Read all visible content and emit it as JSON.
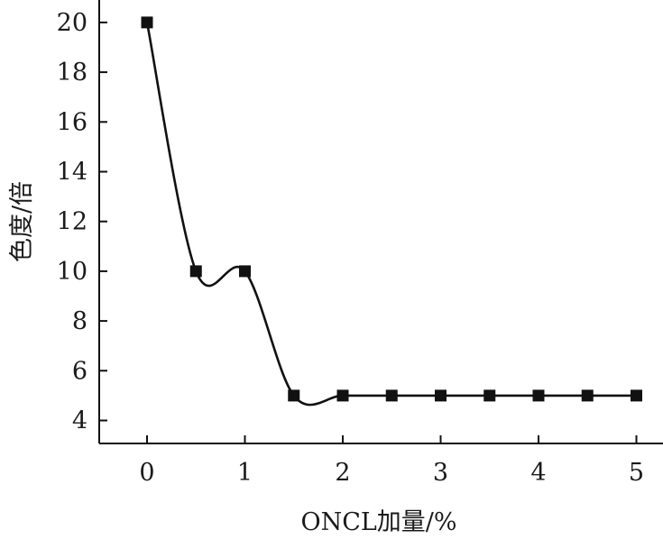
{
  "chart_data": {
    "type": "line",
    "title": "",
    "xlabel": "ONCL加量/%",
    "ylabel": "色度/倍",
    "xlim": [
      -0.5,
      5.3
    ],
    "ylim": [
      3.1,
      21
    ],
    "x_ticks": [
      0,
      1,
      2,
      3,
      4,
      5
    ],
    "y_ticks": [
      4,
      6,
      8,
      10,
      12,
      14,
      16,
      18,
      20
    ],
    "grid": false,
    "legend": "none",
    "series": [
      {
        "color": "#111111",
        "marker": "square",
        "smooth": true,
        "points": [
          {
            "x": 0,
            "y": 20
          },
          {
            "x": 0.5,
            "y": 10
          },
          {
            "x": 1,
            "y": 10
          },
          {
            "x": 1.5,
            "y": 5
          },
          {
            "x": 2,
            "y": 5
          },
          {
            "x": 2.5,
            "y": 5
          },
          {
            "x": 3,
            "y": 5
          },
          {
            "x": 3.5,
            "y": 5
          },
          {
            "x": 4,
            "y": 5
          },
          {
            "x": 4.5,
            "y": 5
          },
          {
            "x": 5,
            "y": 5
          }
        ]
      }
    ]
  }
}
